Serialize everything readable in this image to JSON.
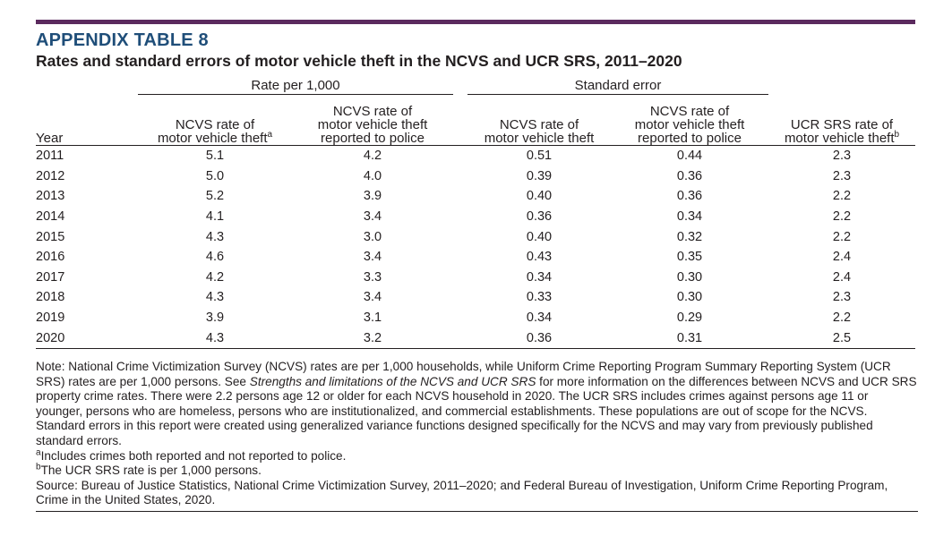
{
  "appendix_label": "APPENDIX TABLE 8",
  "title": "Rates and standard errors of motor vehicle theft in the NCVS and UCR SRS, 2011–2020",
  "groups": {
    "rate": "Rate per 1,000",
    "se": "Standard error"
  },
  "columns": {
    "year": "Year",
    "ncvs_rate_l1": "NCVS rate of",
    "ncvs_rate_l2": "motor vehicle theft",
    "ncvs_rate_sup": "a",
    "ncvs_reported_l1": "NCVS rate of",
    "ncvs_reported_l2": "motor vehicle theft",
    "ncvs_reported_l3": "reported to police",
    "se_ncvs_l1": "NCVS rate of",
    "se_ncvs_l2": "motor vehicle theft",
    "se_reported_l1": "NCVS rate of",
    "se_reported_l2": "motor vehicle theft",
    "se_reported_l3": "reported to police",
    "ucr_l1": "UCR SRS rate of",
    "ucr_l2": "motor vehicle theft",
    "ucr_sup": "b"
  },
  "rows": [
    [
      "2011",
      "5.1",
      "4.2",
      "0.51",
      "0.44",
      "2.3"
    ],
    [
      "2012",
      "5.0",
      "4.0",
      "0.39",
      "0.36",
      "2.3"
    ],
    [
      "2013",
      "5.2",
      "3.9",
      "0.40",
      "0.36",
      "2.2"
    ],
    [
      "2014",
      "4.1",
      "3.4",
      "0.36",
      "0.34",
      "2.2"
    ],
    [
      "2015",
      "4.3",
      "3.0",
      "0.40",
      "0.32",
      "2.2"
    ],
    [
      "2016",
      "4.6",
      "3.4",
      "0.43",
      "0.35",
      "2.4"
    ],
    [
      "2017",
      "4.2",
      "3.3",
      "0.34",
      "0.30",
      "2.4"
    ],
    [
      "2018",
      "4.3",
      "3.4",
      "0.33",
      "0.30",
      "2.3"
    ],
    [
      "2019",
      "3.9",
      "3.1",
      "0.34",
      "0.29",
      "2.2"
    ],
    [
      "2020",
      "4.3",
      "3.2",
      "0.36",
      "0.31",
      "2.5"
    ]
  ],
  "notes": {
    "note_a": "Note: National Crime Victimization Survey (NCVS) rates are per 1,000 households, while Uniform Crime Reporting Program Summary Reporting System (UCR SRS) rates are per 1,000 persons. See ",
    "note_italic": "Strengths and limitations of the NCVS and UCR SRS",
    "note_b": " for more information on the differences between NCVS and UCR SRS property crime rates. There were 2.2 persons age 12 or older for each NCVS household in 2020. The UCR SRS includes crimes against persons age 11 or younger, persons who are homeless, persons who are institutionalized, and commercial establishments. These populations are out of scope for the NCVS. Standard errors in this report were created using generalized variance functions designed specifically for the NCVS and may vary from previously published standard errors.",
    "footnote_a_mark": "a",
    "footnote_a": "Includes crimes both reported and not reported to police.",
    "footnote_b_mark": "b",
    "footnote_b": "The UCR SRS rate is per 1,000 persons.",
    "source": "Source: Bureau of Justice Statistics, National Crime Victimization Survey, 2011–2020; and Federal Bureau of Investigation, Uniform Crime Reporting Program, Crime in the United States, 2020."
  },
  "colors": {
    "topbar": "#5b2a5e",
    "appendix": "#1f4e79",
    "text": "#231f20"
  }
}
